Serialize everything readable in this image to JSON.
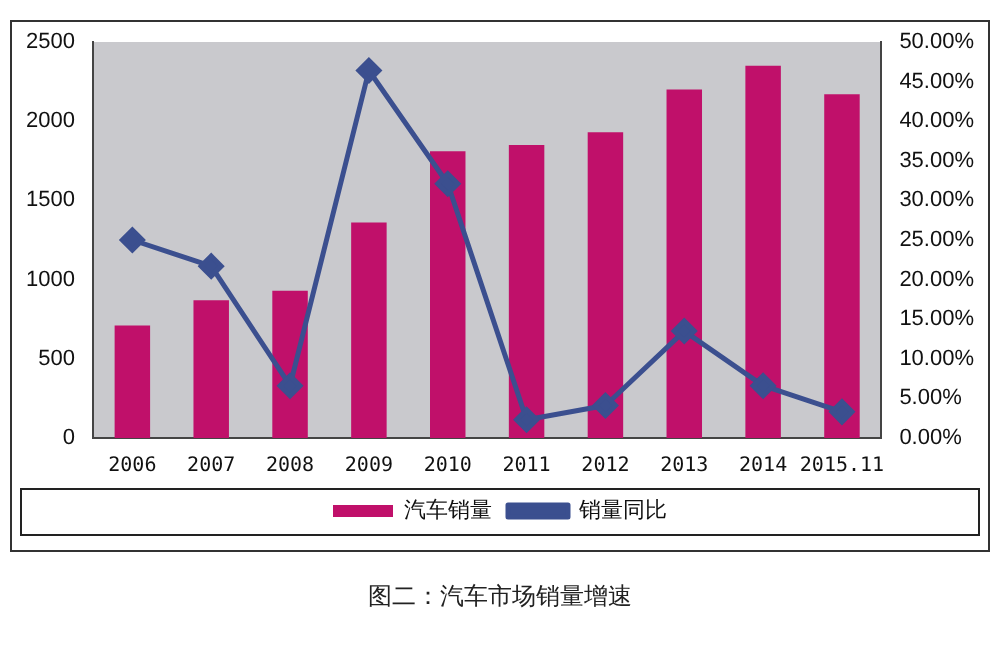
{
  "chart_data": {
    "type": "bar",
    "categories": [
      "2006",
      "2007",
      "2008",
      "2009",
      "2010",
      "2011",
      "2012",
      "2013",
      "2014",
      "2015.11"
    ],
    "series": [
      {
        "name": "汽车销量",
        "color": "#c0106a",
        "values": [
          710,
          870,
          930,
          1360,
          1810,
          1850,
          1930,
          2200,
          2350,
          2170
        ]
      },
      {
        "name": "销量同比",
        "type": "line",
        "axis": "y2",
        "color": "#3b4f8f",
        "marker": "diamond",
        "values": [
          25,
          21.7,
          6.6,
          46.4,
          32.1,
          2.3,
          4.1,
          13.5,
          6.6,
          3.3
        ]
      }
    ],
    "ylim": [
      0,
      2500
    ],
    "yticks": [
      0,
      500,
      1000,
      1500,
      2000,
      2500
    ],
    "y2lim": [
      0,
      50
    ],
    "y2ticks": [
      {
        "value": 0,
        "label": "0.00%"
      },
      {
        "value": 5,
        "label": "5.00%"
      },
      {
        "value": 10,
        "label": "10.00%"
      },
      {
        "value": 15,
        "label": "15.00%"
      },
      {
        "value": 20,
        "label": "20.00%"
      },
      {
        "value": 25,
        "label": "25.00%"
      },
      {
        "value": 30,
        "label": "30.00%"
      },
      {
        "value": 35,
        "label": "35.00%"
      },
      {
        "value": 40,
        "label": "40.00%"
      },
      {
        "value": 45,
        "label": "45.00%"
      },
      {
        "value": 50,
        "label": "50.00%"
      }
    ],
    "grid": false,
    "legend": "bottom",
    "annotations": [
      "图二：汽车市场销量增速"
    ]
  }
}
